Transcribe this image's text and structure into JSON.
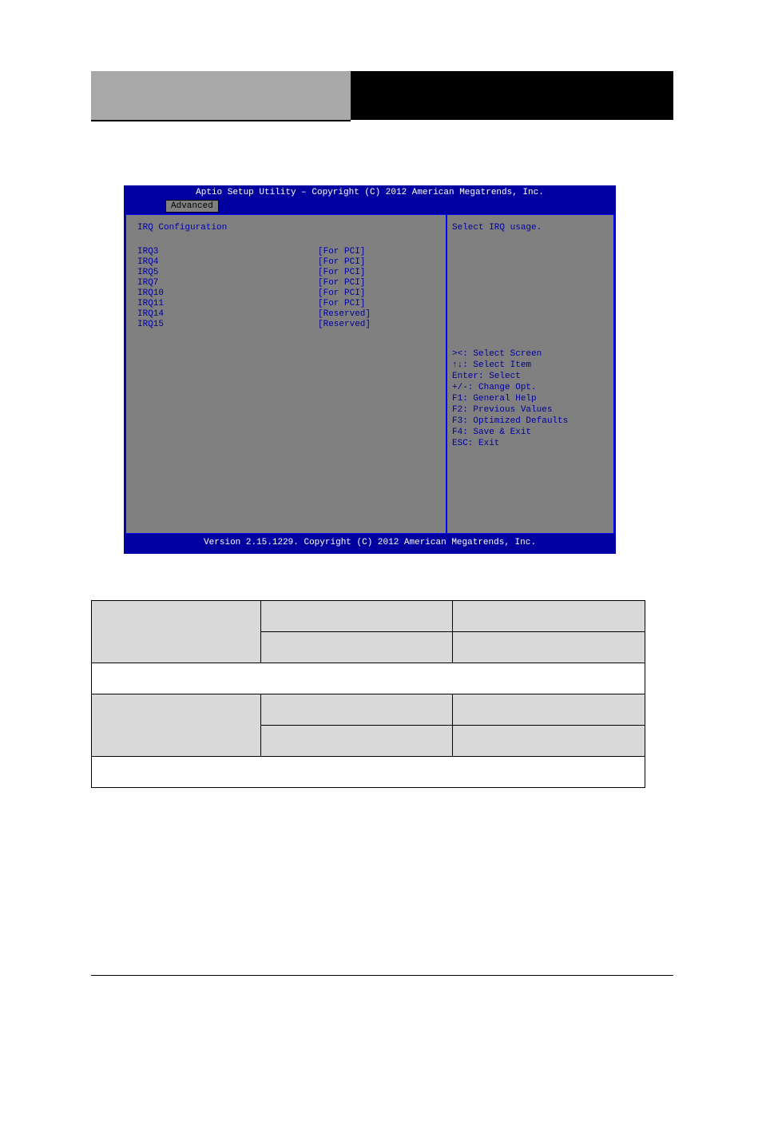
{
  "header": {
    "left_bg": "#a8a8a8",
    "right_bg": "#000000"
  },
  "bios": {
    "title": "Aptio Setup Utility – Copyright (C) 2012 American Megatrends, Inc.",
    "tab": "Advanced",
    "section_title": "IRQ Configuration",
    "help_top": "Select IRQ usage.",
    "irq_rows": [
      {
        "name": "IRQ3",
        "value": "[For PCI]"
      },
      {
        "name": "IRQ4",
        "value": "[For PCI]"
      },
      {
        "name": "IRQ5",
        "value": "[For PCI]"
      },
      {
        "name": "IRQ7",
        "value": "[For PCI]"
      },
      {
        "name": "IRQ10",
        "value": "[For PCI]"
      },
      {
        "name": "IRQ11",
        "value": "[For PCI]"
      },
      {
        "name": "IRQ14",
        "value": "[Reserved]"
      },
      {
        "name": "IRQ15",
        "value": "[Reserved]"
      }
    ],
    "nav": [
      "><: Select Screen",
      "↑↓: Select Item",
      "Enter: Select",
      "+/-: Change Opt.",
      "F1: General Help",
      "F2: Previous Values",
      "F3: Optimized Defaults",
      "F4: Save & Exit",
      "ESC: Exit"
    ],
    "footer": "Version 2.15.1229. Copyright (C) 2012 American Megatrends, Inc.",
    "colors": {
      "blue": "#0000a0",
      "gray": "#808080",
      "white": "#ffffff"
    }
  },
  "table": {
    "shaded_bg": "#d9d9d9",
    "rows": [
      {
        "type": "triple-2span",
        "c1": "",
        "c2": "",
        "c3a": "",
        "c3b": ""
      },
      {
        "type": "full",
        "text": ""
      },
      {
        "type": "triple-2span",
        "c1": "",
        "c2": "",
        "c3a": "",
        "c3b": ""
      },
      {
        "type": "full",
        "text": ""
      }
    ]
  }
}
